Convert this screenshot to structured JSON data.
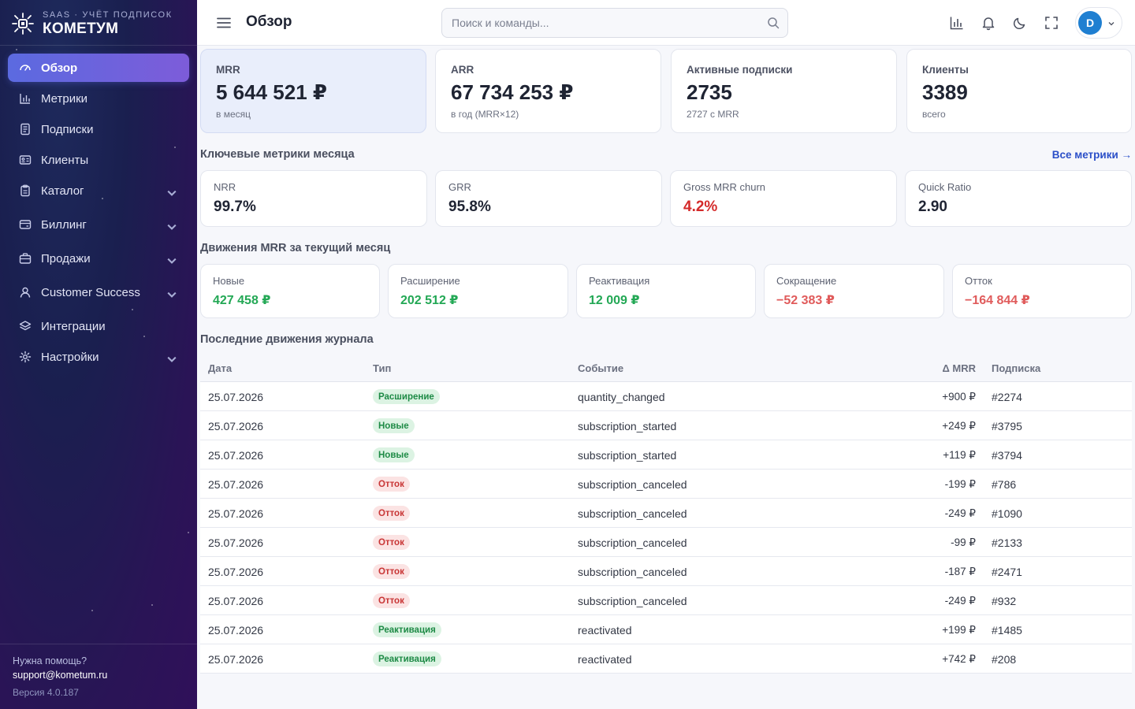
{
  "brand": {
    "subtitle": "SAAS · УЧЁТ ПОДПИСОК",
    "name": "КОМЕТУМ"
  },
  "sidebar": {
    "items": [
      {
        "label": "Обзор",
        "icon": "gauge-icon",
        "active": true,
        "expandable": false
      },
      {
        "label": "Метрики",
        "icon": "bar-chart-icon",
        "active": false,
        "expandable": false
      },
      {
        "label": "Подписки",
        "icon": "document-icon",
        "active": false,
        "expandable": false
      },
      {
        "label": "Клиенты",
        "icon": "id-card-icon",
        "active": false,
        "expandable": false
      },
      {
        "label": "Каталог",
        "icon": "clipboard-icon",
        "active": false,
        "expandable": true
      },
      {
        "label": "Биллинг",
        "icon": "wallet-icon",
        "active": false,
        "expandable": true
      },
      {
        "label": "Продажи",
        "icon": "briefcase-icon",
        "active": false,
        "expandable": true
      },
      {
        "label": "Customer Success",
        "icon": "user-icon",
        "active": false,
        "expandable": true
      },
      {
        "label": "Интеграции",
        "icon": "layers-icon",
        "active": false,
        "expandable": false
      },
      {
        "label": "Настройки",
        "icon": "gear-icon",
        "active": false,
        "expandable": true
      }
    ],
    "help_question": "Нужна помощь?",
    "help_email": "support@kometum.ru",
    "version": "Версия 4.0.187"
  },
  "topbar": {
    "title": "Обзор",
    "search_placeholder": "Поиск и команды...",
    "avatar_initial": "D"
  },
  "kpis": [
    {
      "label": "MRR",
      "value": "5 644 521 ₽",
      "sub": "в месяц",
      "highlight": true
    },
    {
      "label": "ARR",
      "value": "67 734 253 ₽",
      "sub": "в год (MRR×12)",
      "highlight": false
    },
    {
      "label": "Активные подписки",
      "value": "2735",
      "sub": "2727 с MRR",
      "highlight": false
    },
    {
      "label": "Клиенты",
      "value": "3389",
      "sub": "всего",
      "highlight": false
    }
  ],
  "key_metrics": {
    "title": "Ключевые метрики месяца",
    "link": "Все метрики →",
    "items": [
      {
        "label": "NRR",
        "value": "99.7%",
        "negative": false
      },
      {
        "label": "GRR",
        "value": "95.8%",
        "negative": false
      },
      {
        "label": "Gross MRR churn",
        "value": "4.2%",
        "negative": true
      },
      {
        "label": "Quick Ratio",
        "value": "2.90",
        "negative": false
      }
    ]
  },
  "movements": {
    "title": "Движения MRR за текущий месяц",
    "items": [
      {
        "label": "Новые",
        "value": "427 458 ₽",
        "negative": false
      },
      {
        "label": "Расширение",
        "value": "202 512 ₽",
        "negative": false
      },
      {
        "label": "Реактивация",
        "value": "12 009 ₽",
        "negative": false
      },
      {
        "label": "Сокращение",
        "value": "−52 383 ₽",
        "negative": true
      },
      {
        "label": "Отток",
        "value": "−164 844 ₽",
        "negative": true
      }
    ]
  },
  "journal": {
    "title": "Последние движения журнала",
    "columns": {
      "date": "Дата",
      "type": "Тип",
      "event": "Событие",
      "delta": "Δ MRR",
      "subscription": "Подписка"
    },
    "rows": [
      {
        "date": "25.07.2026",
        "type": "Расширение",
        "kind": "exp",
        "event": "quantity_changed",
        "delta": "+900 ₽",
        "sub": "#2274"
      },
      {
        "date": "25.07.2026",
        "type": "Новые",
        "kind": "new",
        "event": "subscription_started",
        "delta": "+249 ₽",
        "sub": "#3795"
      },
      {
        "date": "25.07.2026",
        "type": "Новые",
        "kind": "new",
        "event": "subscription_started",
        "delta": "+119 ₽",
        "sub": "#3794"
      },
      {
        "date": "25.07.2026",
        "type": "Отток",
        "kind": "churn",
        "event": "subscription_canceled",
        "delta": "-199 ₽",
        "sub": "#786"
      },
      {
        "date": "25.07.2026",
        "type": "Отток",
        "kind": "churn",
        "event": "subscription_canceled",
        "delta": "-249 ₽",
        "sub": "#1090"
      },
      {
        "date": "25.07.2026",
        "type": "Отток",
        "kind": "churn",
        "event": "subscription_canceled",
        "delta": "-99 ₽",
        "sub": "#2133"
      },
      {
        "date": "25.07.2026",
        "type": "Отток",
        "kind": "churn",
        "event": "subscription_canceled",
        "delta": "-187 ₽",
        "sub": "#2471"
      },
      {
        "date": "25.07.2026",
        "type": "Отток",
        "kind": "churn",
        "event": "subscription_canceled",
        "delta": "-249 ₽",
        "sub": "#932"
      },
      {
        "date": "25.07.2026",
        "type": "Реактивация",
        "kind": "react",
        "event": "reactivated",
        "delta": "+199 ₽",
        "sub": "#1485"
      },
      {
        "date": "25.07.2026",
        "type": "Реактивация",
        "kind": "react",
        "event": "reactivated",
        "delta": "+742 ₽",
        "sub": "#208"
      }
    ]
  },
  "colors": {
    "accent": "#5b6ae0",
    "positive": "#23a855",
    "negative": "#e05b5b",
    "link": "#2b4fc8"
  }
}
